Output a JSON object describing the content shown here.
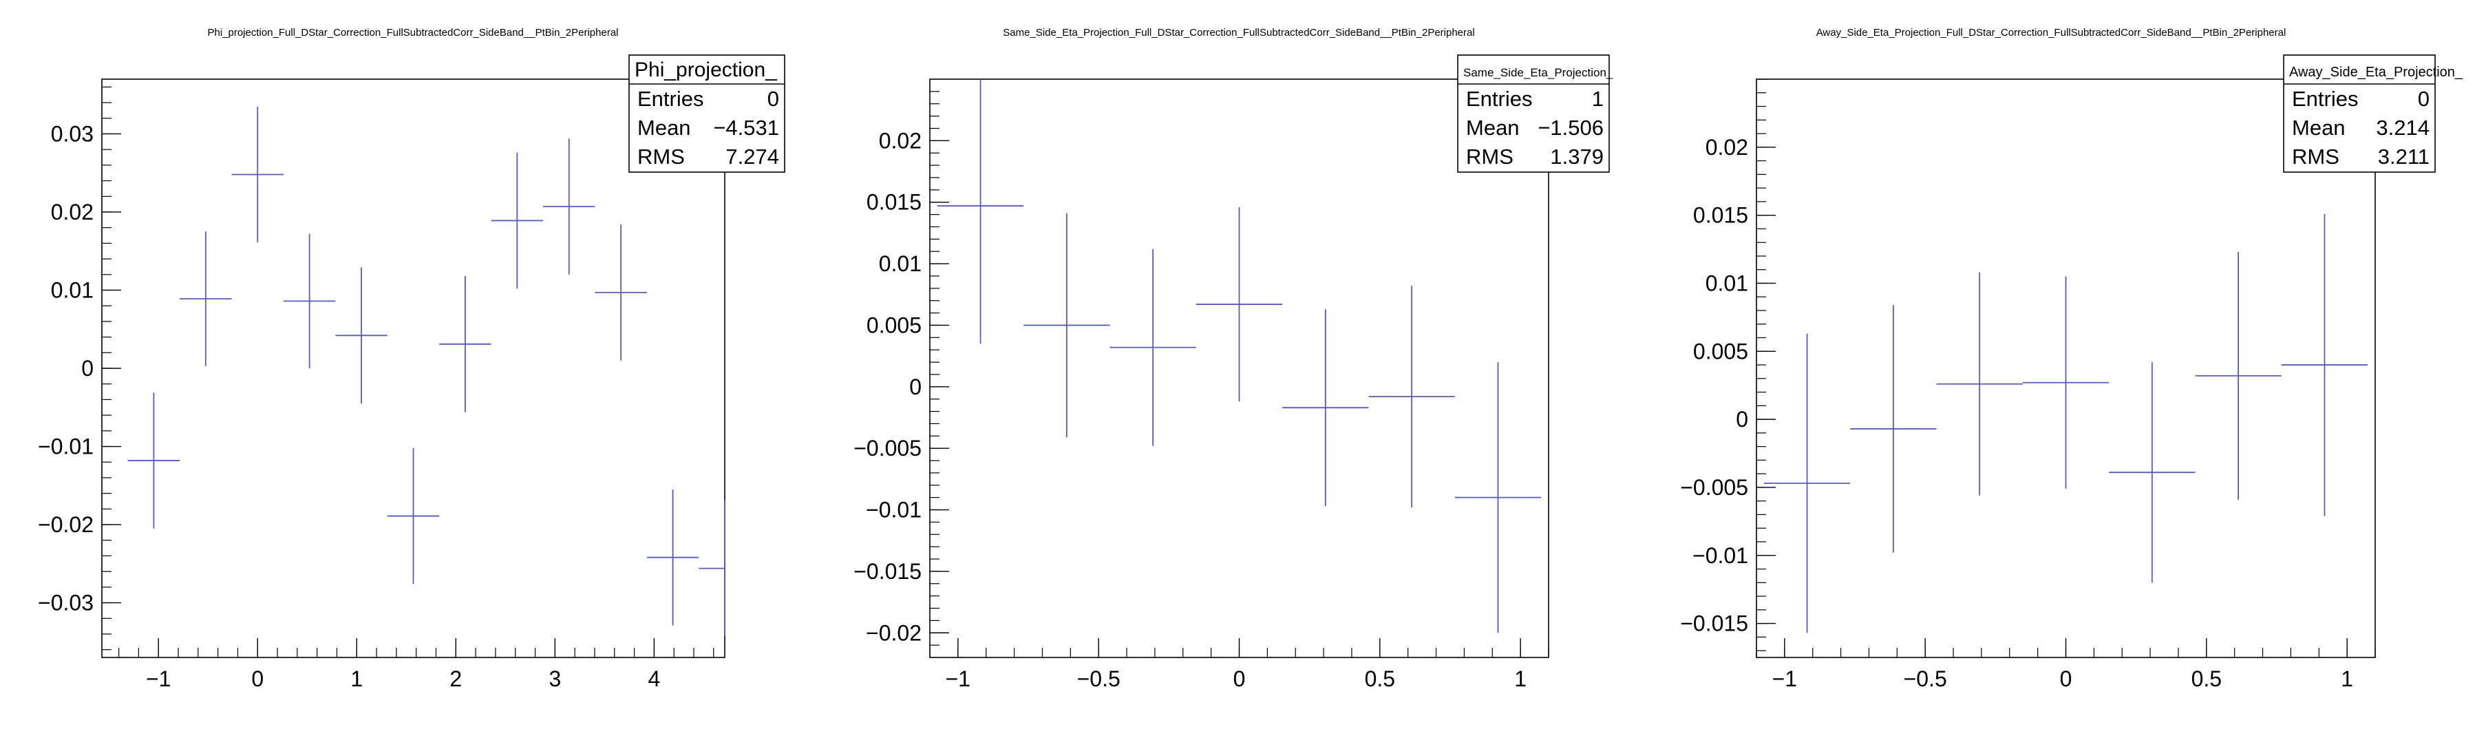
{
  "colors": {
    "marker": "#5a5ab8",
    "axis": "#000000",
    "background": "#ffffff"
  },
  "chart_data": [
    {
      "type": "scatter",
      "title": "Phi_projection_Full_DStar_Correction_FullSubtractedCorr_SideBand__PtBin_2Peripheral",
      "xlabel": "",
      "ylabel": "",
      "xlim": [
        -1.5708,
        4.7124
      ],
      "ylim": [
        -0.037,
        0.037
      ],
      "xticks": [
        -1,
        0,
        1,
        2,
        3,
        4
      ],
      "xtick_labels": [
        "−1",
        "0",
        "1",
        "2",
        "3",
        "4"
      ],
      "yticks": [
        -0.03,
        -0.02,
        -0.01,
        0,
        0.01,
        0.02,
        0.03
      ],
      "ytick_labels": [
        "−0.03",
        "−0.02",
        "−0.01",
        "0",
        "0.01",
        "0.02",
        "0.03"
      ],
      "x": [
        -1.0472,
        -0.5236,
        0,
        0.5236,
        1.0472,
        1.5708,
        2.0944,
        2.618,
        3.1416,
        3.6652,
        4.1888,
        4.7124
      ],
      "y": [
        -0.0118,
        0.0089,
        0.0248,
        0.0086,
        0.0042,
        -0.0189,
        0.0031,
        0.0189,
        0.0207,
        0.0097,
        -0.0242,
        -0.0256
      ],
      "xerr": [
        0.2618,
        0.2618,
        0.2618,
        0.2618,
        0.2618,
        0.2618,
        0.2618,
        0.2618,
        0.2618,
        0.2618,
        0.2618,
        0.2618
      ],
      "yerr": [
        0.0087,
        0.0086,
        0.0087,
        0.0086,
        0.0087,
        0.0087,
        0.0087,
        0.0087,
        0.0087,
        0.0087,
        0.0087,
        0.0087
      ],
      "stats": {
        "name": "Phi_projection_",
        "rows": [
          [
            "Entries",
            "0"
          ],
          [
            "Mean",
            "−4.531"
          ],
          [
            "RMS",
            "7.274"
          ]
        ]
      }
    },
    {
      "type": "scatter",
      "title": "Same_Side_Eta_Projection_Full_DStar_Correction_FullSubtractedCorr_SideBand__PtBin_2Peripheral",
      "xlabel": "",
      "ylabel": "",
      "xlim": [
        -1.1,
        1.1
      ],
      "ylim": [
        -0.022,
        0.025
      ],
      "xticks": [
        -1,
        -0.5,
        0,
        0.5,
        1
      ],
      "xtick_labels": [
        "−1",
        "−0.5",
        "0",
        "0.5",
        "1"
      ],
      "yticks": [
        -0.02,
        -0.015,
        -0.01,
        -0.005,
        0,
        0.005,
        0.01,
        0.015,
        0.02
      ],
      "ytick_labels": [
        "−0.02",
        "−0.015",
        "−0.01",
        "−0.005",
        "0",
        "0.005",
        "0.01",
        "0.015",
        "0.02"
      ],
      "x": [
        -0.92,
        -0.6133,
        -0.3067,
        0,
        0.3067,
        0.6133,
        0.92
      ],
      "y": [
        0.0147,
        0.005,
        0.0032,
        0.0067,
        -0.0017,
        -0.0008,
        -0.009
      ],
      "xerr": [
        0.1533,
        0.1533,
        0.1533,
        0.1533,
        0.1533,
        0.1533,
        0.1533
      ],
      "yerr": [
        0.0112,
        0.0091,
        0.008,
        0.0079,
        0.008,
        0.009,
        0.011
      ],
      "stats": {
        "name": "Same_Side_Eta_Projection_",
        "rows": [
          [
            "Entries",
            "1"
          ],
          [
            "Mean",
            "−1.506"
          ],
          [
            "RMS",
            "1.379"
          ]
        ]
      }
    },
    {
      "type": "scatter",
      "title": "Away_Side_Eta_Projection_Full_DStar_Correction_FullSubtractedCorr_SideBand__PtBin_2Peripheral",
      "xlabel": "",
      "ylabel": "",
      "xlim": [
        -1.1,
        1.1
      ],
      "ylim": [
        -0.0175,
        0.025
      ],
      "xticks": [
        -1,
        -0.5,
        0,
        0.5,
        1
      ],
      "xtick_labels": [
        "−1",
        "−0.5",
        "0",
        "0.5",
        "1"
      ],
      "yticks": [
        -0.015,
        -0.01,
        -0.005,
        0,
        0.005,
        0.01,
        0.015,
        0.02
      ],
      "ytick_labels": [
        "−0.015",
        "−0.01",
        "−0.005",
        "0",
        "0.005",
        "0.01",
        "0.015",
        "0.02"
      ],
      "x": [
        -0.92,
        -0.6133,
        -0.3067,
        0,
        0.3067,
        0.6133,
        0.92
      ],
      "y": [
        -0.0047,
        -0.0007,
        0.0026,
        0.0027,
        -0.0039,
        0.0032,
        0.004
      ],
      "xerr": [
        0.1533,
        0.1533,
        0.1533,
        0.1533,
        0.1533,
        0.1533,
        0.1533
      ],
      "yerr": [
        0.011,
        0.0091,
        0.0082,
        0.0078,
        0.0081,
        0.0091,
        0.0111
      ],
      "stats": {
        "name": "Away_Side_Eta_Projection_",
        "rows": [
          [
            "Entries",
            "0"
          ],
          [
            "Mean",
            "3.214"
          ],
          [
            "RMS",
            "3.211"
          ]
        ]
      }
    }
  ]
}
